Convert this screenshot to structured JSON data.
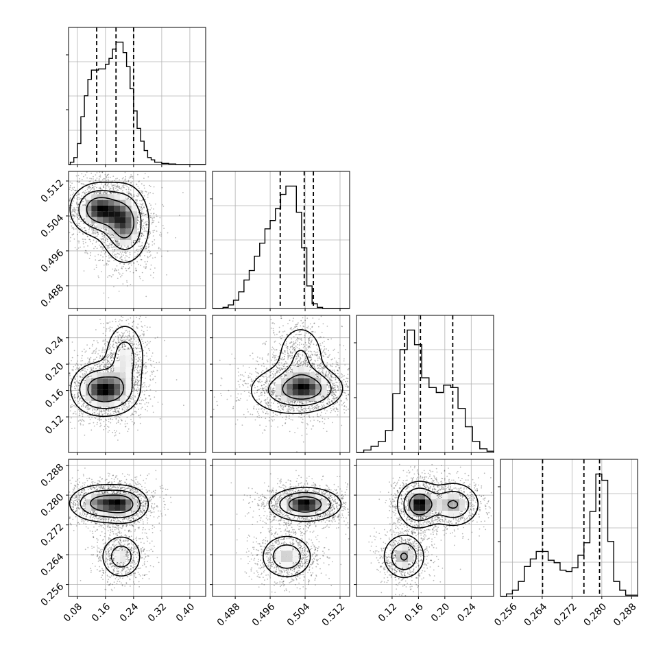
{
  "chart_data": {
    "type": "corner",
    "grid": true,
    "parameters": [
      {
        "ticks": [
          "0.08",
          "0.16",
          "0.24",
          "0.32",
          "0.40"
        ],
        "range": [
          0.055,
          0.445
        ],
        "quantiles": [
          0.135,
          0.19,
          0.24
        ],
        "hist_x": [
          0.055,
          0.06,
          0.07,
          0.08,
          0.09,
          0.1,
          0.11,
          0.12,
          0.13,
          0.14,
          0.15,
          0.16,
          0.17,
          0.18,
          0.19,
          0.2,
          0.21,
          0.22,
          0.23,
          0.24,
          0.25,
          0.26,
          0.27,
          0.28,
          0.29,
          0.3,
          0.31,
          0.32,
          0.33,
          0.34,
          0.36,
          0.38,
          0.4,
          0.445
        ],
        "hist_y": [
          0,
          0.02,
          0.06,
          0.18,
          0.41,
          0.59,
          0.73,
          0.81,
          0.81,
          0.82,
          0.82,
          0.86,
          0.91,
          0.99,
          1.05,
          1.05,
          0.96,
          0.84,
          0.65,
          0.46,
          0.31,
          0.2,
          0.12,
          0.06,
          0.04,
          0.02,
          0.02,
          0.01,
          0.01,
          0.005,
          0,
          0,
          0,
          0
        ]
      },
      {
        "ticks": [
          "0.488",
          "0.496",
          "0.504",
          "0.512"
        ],
        "range": [
          0.4828,
          0.5142
        ],
        "quantiles": [
          0.4983,
          0.5038,
          0.5059
        ],
        "hist_x": [
          0.4828,
          0.4852,
          0.4864,
          0.4876,
          0.4888,
          0.49,
          0.4912,
          0.4924,
          0.4936,
          0.4948,
          0.496,
          0.4972,
          0.4984,
          0.4996,
          0.5008,
          0.502,
          0.5032,
          0.5044,
          0.5056,
          0.5068,
          0.508,
          0.5092,
          0.5104,
          0.5116,
          0.5128,
          0.5142
        ],
        "hist_y": [
          0,
          0.01,
          0.03,
          0.07,
          0.14,
          0.24,
          0.32,
          0.44,
          0.55,
          0.67,
          0.74,
          0.84,
          0.96,
          1.03,
          1.03,
          0.81,
          0.51,
          0.19,
          0.04,
          0.01,
          0,
          0,
          0,
          0,
          0,
          0
        ]
      },
      {
        "ticks": [
          "0.12",
          "0.16",
          "0.20",
          "0.24"
        ],
        "range": [
          0.066,
          0.274
        ],
        "quantiles": [
          0.139,
          0.163,
          0.212
        ],
        "hist_x": [
          0.066,
          0.077,
          0.088,
          0.099,
          0.11,
          0.121,
          0.132,
          0.143,
          0.154,
          0.165,
          0.176,
          0.187,
          0.198,
          0.209,
          0.22,
          0.231,
          0.242,
          0.253,
          0.264,
          0.274
        ],
        "hist_y": [
          0,
          0.02,
          0.05,
          0.09,
          0.18,
          0.48,
          0.84,
          1.0,
          0.88,
          0.61,
          0.53,
          0.49,
          0.55,
          0.53,
          0.36,
          0.21,
          0.09,
          0.03,
          0.01,
          0
        ]
      },
      {
        "ticks": [
          "0.256",
          "0.264",
          "0.272",
          "0.280",
          "0.288"
        ],
        "range": [
          0.2528,
          0.2896
        ],
        "quantiles": [
          0.2641,
          0.2752,
          0.2794
        ],
        "hist_x": [
          0.2528,
          0.2544,
          0.256,
          0.2576,
          0.2592,
          0.2608,
          0.2624,
          0.264,
          0.2656,
          0.2672,
          0.2688,
          0.2704,
          0.272,
          0.2736,
          0.2752,
          0.2768,
          0.2784,
          0.28,
          0.2816,
          0.2832,
          0.2848,
          0.2864,
          0.2896
        ],
        "hist_y": [
          0,
          0.02,
          0.05,
          0.12,
          0.24,
          0.3,
          0.36,
          0.36,
          0.29,
          0.27,
          0.21,
          0.2,
          0.23,
          0.33,
          0.43,
          0.68,
          0.98,
          0.93,
          0.44,
          0.12,
          0.05,
          0.01,
          0
        ]
      }
    ],
    "pairs": [
      {
        "x": 0,
        "y": 1,
        "modes": [
          [
            0.14,
            0.5055,
            0.04,
            0.003,
            1.0
          ],
          [
            0.215,
            0.5022,
            0.035,
            0.0045,
            0.9
          ]
        ]
      },
      {
        "x": 0,
        "y": 2,
        "modes": [
          [
            0.14,
            0.162,
            0.04,
            0.02,
            1.0
          ],
          [
            0.215,
            0.21,
            0.03,
            0.028,
            0.6
          ],
          [
            0.195,
            0.158,
            0.035,
            0.018,
            0.5
          ]
        ]
      },
      {
        "x": 1,
        "y": 2,
        "modes": [
          [
            0.505,
            0.163,
            0.004,
            0.016,
            1.0
          ],
          [
            0.4998,
            0.16,
            0.005,
            0.02,
            0.7
          ],
          [
            0.503,
            0.21,
            0.003,
            0.028,
            0.6
          ]
        ]
      },
      {
        "x": 0,
        "y": 3,
        "modes": [
          [
            0.145,
            0.2778,
            0.045,
            0.0025,
            1.0
          ],
          [
            0.215,
            0.2775,
            0.035,
            0.0025,
            0.9
          ],
          [
            0.205,
            0.2635,
            0.03,
            0.003,
            0.7
          ]
        ]
      },
      {
        "x": 1,
        "y": 3,
        "modes": [
          [
            0.504,
            0.2775,
            0.004,
            0.0022,
            1.0
          ],
          [
            0.4998,
            0.2635,
            0.003,
            0.003,
            0.6
          ]
        ]
      },
      {
        "x": 2,
        "y": 3,
        "modes": [
          [
            0.161,
            0.2775,
            0.016,
            0.003,
            1.0
          ],
          [
            0.213,
            0.2775,
            0.02,
            0.003,
            0.7
          ],
          [
            0.138,
            0.2635,
            0.016,
            0.003,
            0.7
          ]
        ]
      }
    ]
  }
}
